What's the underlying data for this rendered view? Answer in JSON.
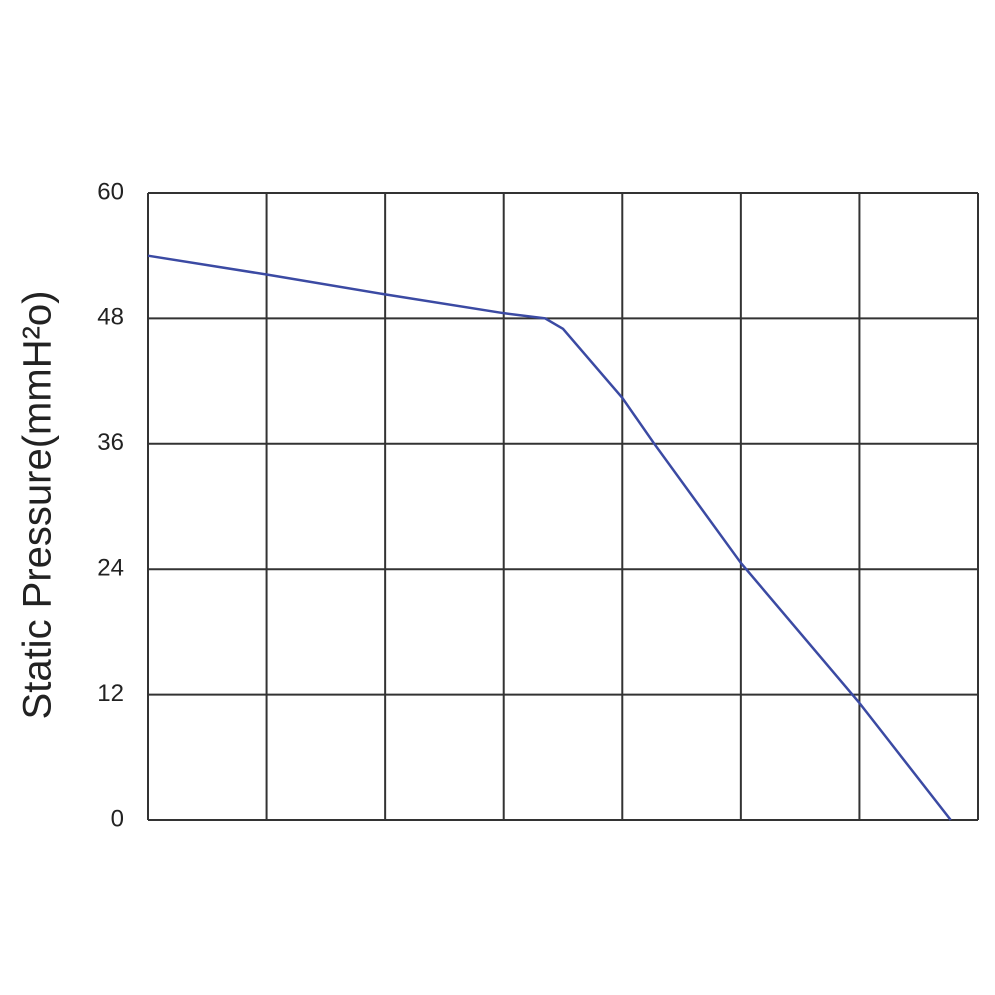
{
  "chart_data": {
    "type": "line",
    "ylabel": "Static Pressure(mmH²o)",
    "x": [
      0,
      1,
      2,
      3,
      3.35,
      3.5,
      4,
      4.27,
      5,
      6,
      6.77
    ],
    "series": [
      {
        "color": "#3b4aa3",
        "values": [
          54,
          52.2,
          50.3,
          48.5,
          48,
          47,
          40.4,
          36,
          24.6,
          11.2,
          0
        ]
      }
    ],
    "xlim": [
      0,
      7
    ],
    "xticks": [
      0,
      1,
      2,
      3,
      4,
      5,
      6,
      7
    ],
    "ylim": [
      0,
      60
    ],
    "yticks": [
      0,
      12,
      24,
      36,
      48,
      60
    ],
    "grid": true
  }
}
